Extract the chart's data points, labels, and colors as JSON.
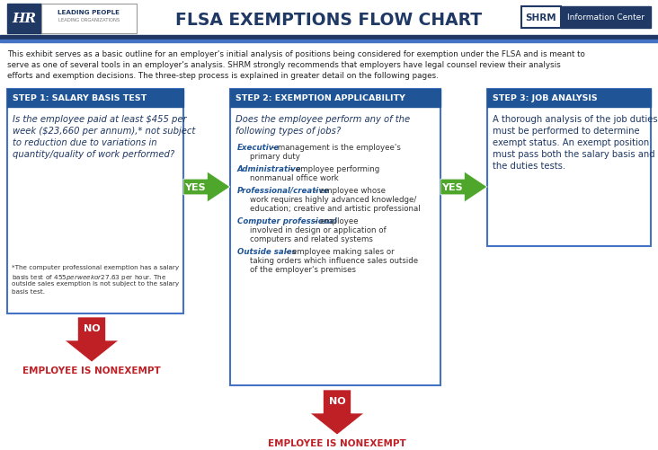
{
  "title": "FLSA EXEMPTIONS FLOW CHART",
  "bg_color": "#ffffff",
  "dark_blue": "#1f3864",
  "step_header_blue": "#1f5496",
  "box_border_blue": "#4472c4",
  "green_arrow": "#4ea72a",
  "red_arrow": "#be2026",
  "dark_red_text": "#be2026",
  "intro_text_line1": "This exhibit serves as a basic outline for an employer's initial analysis of positions being considered for exemption under the FLSA and is meant to",
  "intro_text_line2": "serve as one of several tools in an employer's analysis. SHRM strongly recommends that employers have legal counsel review their analysis",
  "intro_text_line3": "efforts and exemption decisions. The three-step process is explained in greater detail on the following pages.",
  "step1_header": "STEP 1: SALARY BASIS TEST",
  "step1_q_line1": "Is the employee paid at least $455 per",
  "step1_q_line2": "week ($23,660 per annum),* not subject",
  "step1_q_line3": "to reduction due to variations in",
  "step1_q_line4": "quantity/quality of work performed?",
  "step1_fn_line1": "*The computer professional exemption has a salary",
  "step1_fn_line2": "basis test of $455 per week or $27.63 per hour. The",
  "step1_fn_line3": "outside sales exemption is not subject to the salary",
  "step1_fn_line4": "basis test.",
  "step2_header": "STEP 2: EXEMPTION APPLICABILITY",
  "step2_q_line1": "Does the employee perform any of the",
  "step2_q_line2": "following types of jobs?",
  "step2_items": [
    {
      "bold": "Executive",
      "rest": " – management is the employee's",
      "rest2": "primary duty"
    },
    {
      "bold": "Administrative",
      "rest": " – employee performing",
      "rest2": "nonmanual office work"
    },
    {
      "bold": "Professional/creative",
      "rest": " – employee whose",
      "rest2": "work requires highly advanced knowledge/",
      "rest3": "education; creative and artistic professional"
    },
    {
      "bold": "Computer professional",
      "rest": " – employee",
      "rest2": "involved in design or application of",
      "rest3": "computers and related systems"
    },
    {
      "bold": "Outside sales",
      "rest": " – employee making sales or",
      "rest2": "taking orders which influence sales outside",
      "rest3": "of the employer's premises"
    }
  ],
  "step3_header": "STEP 3: JOB ANALYSIS",
  "step3_line1": "A thorough analysis of the job duties",
  "step3_line2": "must be performed to determine",
  "step3_line3": "exempt status. An exempt position",
  "step3_line4": "must pass both the salary basis and",
  "step3_line5": "the duties tests.",
  "nonexempt_text": "EMPLOYEE IS NONEXEMPT",
  "shrm_label": "SHRM",
  "info_label": "Information Center",
  "hr_label": "HR",
  "hr_text1": "LEADING PEOPLE",
  "hr_text2": "LEADING ORGANIZATIONS",
  "divider_dark": "#1f3864",
  "divider_light": "#4472c4"
}
